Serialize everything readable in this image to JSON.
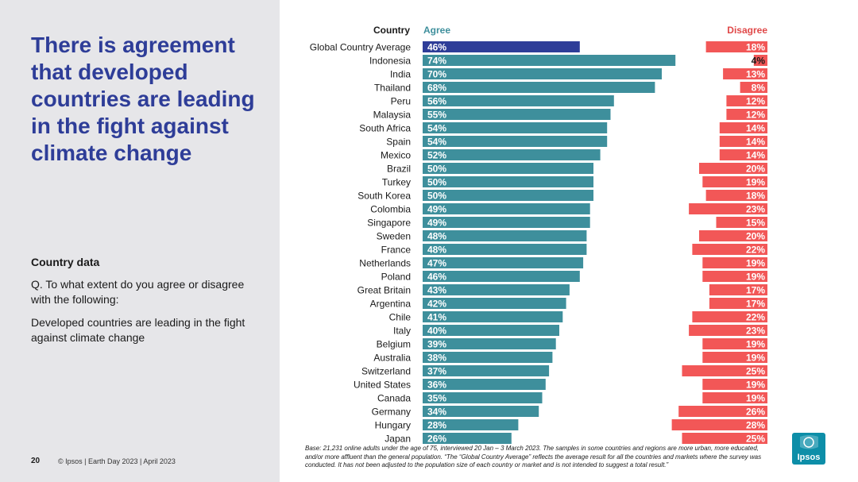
{
  "slide": {
    "title": "There is agreement that developed countries are leading in the fight against climate change",
    "subtitle": "Country data",
    "question": "Q. To what extent do you agree or disagree with the following:",
    "statement": "Developed countries are leading in the fight against climate change",
    "page_number": "20",
    "footer": "© Ipsos | Earth Day 2023 | April 2023",
    "base_note": "Base: 21,231 online adults under the age of 75, interviewed 20 Jan – 3 March 2023. The samples in some countries and regions are more urban, more educated, and/or more affluent than the general population. “The “Global Country Average” reflects the average result for all the countries and markets where the survey was conducted. It has not been adjusted to the population size of each country or market and is not intended to suggest a total result.”",
    "logo_text": "Ipsos"
  },
  "colors": {
    "panel_bg": "#e6e6e9",
    "title": "#2e3d98",
    "agree_bar": "#3e8f9c",
    "agree_highlight": "#2e3d98",
    "disagree_bar": "#f25757",
    "agree_header": "#3e8f9c",
    "disagree_header": "#e04848",
    "logo": "#0d8ea8"
  },
  "chart_data": {
    "type": "bar",
    "orientation": "horizontal",
    "title": "",
    "category_header": "Country",
    "categories": [
      "Global Country Average",
      "Indonesia",
      "India",
      "Thailand",
      "Peru",
      "Malaysia",
      "South Africa",
      "Spain",
      "Mexico",
      "Brazil",
      "Turkey",
      "South Korea",
      "Colombia",
      "Singapore",
      "Sweden",
      "France",
      "Netherlands",
      "Poland",
      "Great Britain",
      "Argentina",
      "Chile",
      "Italy",
      "Belgium",
      "Australia",
      "Switzerland",
      "United States",
      "Canada",
      "Germany",
      "Hungary",
      "Japan"
    ],
    "series": [
      {
        "name": "Agree",
        "unit": "%",
        "values": [
          46,
          74,
          70,
          68,
          56,
          55,
          54,
          54,
          52,
          50,
          50,
          50,
          49,
          49,
          48,
          48,
          47,
          46,
          43,
          42,
          41,
          40,
          39,
          38,
          37,
          36,
          35,
          34,
          28,
          26
        ]
      },
      {
        "name": "Disagree",
        "unit": "%",
        "values": [
          18,
          4,
          13,
          8,
          12,
          12,
          14,
          14,
          14,
          20,
          19,
          18,
          23,
          15,
          20,
          22,
          19,
          19,
          17,
          17,
          22,
          23,
          19,
          19,
          25,
          19,
          19,
          26,
          28,
          25
        ]
      }
    ],
    "highlight_category": "Global Country Average",
    "legend": "top",
    "grid": false,
    "xlim": [
      0,
      100
    ]
  }
}
